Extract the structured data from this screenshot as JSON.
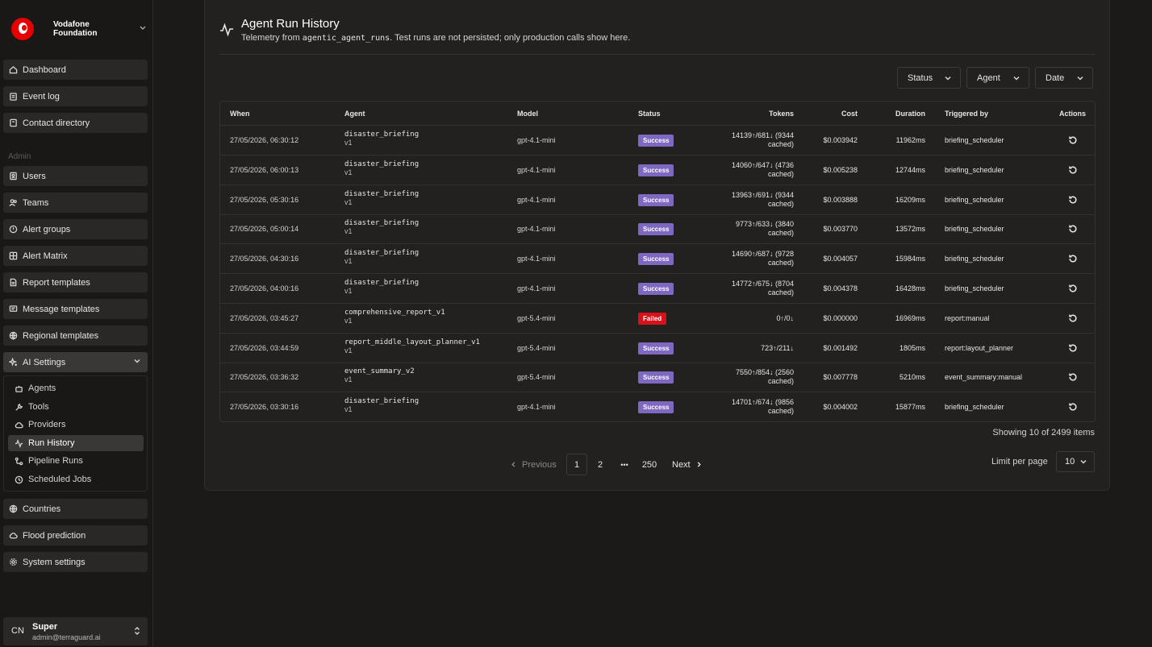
{
  "brand": {
    "line1": "Vodafone",
    "line2": "Foundation"
  },
  "nav": {
    "top": [
      {
        "label": "Dashboard",
        "icon": "home-icon"
      },
      {
        "label": "Event log",
        "icon": "clipboard-icon"
      },
      {
        "label": "Contact directory",
        "icon": "book-icon"
      }
    ],
    "section_label": "Admin",
    "admin": [
      {
        "label": "Users",
        "icon": "user-badge-icon"
      },
      {
        "label": "Teams",
        "icon": "users-icon"
      },
      {
        "label": "Alert groups",
        "icon": "alert-circle-icon"
      },
      {
        "label": "Alert Matrix",
        "icon": "grid-icon"
      },
      {
        "label": "Report templates",
        "icon": "file-icon"
      },
      {
        "label": "Message templates",
        "icon": "message-icon"
      },
      {
        "label": "Regional templates",
        "icon": "globe-icon"
      },
      {
        "label": "AI Settings",
        "icon": "sparkles-icon"
      }
    ],
    "ai_sub": [
      {
        "label": "Agents",
        "icon": "bot-icon"
      },
      {
        "label": "Tools",
        "icon": "wrench-icon"
      },
      {
        "label": "Providers",
        "icon": "cloud-icon"
      },
      {
        "label": "Run History",
        "icon": "activity-icon"
      },
      {
        "label": "Pipeline Runs",
        "icon": "workflow-icon"
      },
      {
        "label": "Scheduled Jobs",
        "icon": "clock-icon"
      }
    ],
    "bottom": [
      {
        "label": "Countries",
        "icon": "globe-icon"
      },
      {
        "label": "Flood prediction",
        "icon": "cloud-icon"
      },
      {
        "label": "System settings",
        "icon": "gear-icon"
      }
    ]
  },
  "user": {
    "initials": "CN",
    "name": "Super",
    "email": "admin@terraguard.ai"
  },
  "page": {
    "title": "Agent Run History",
    "subtitle_pre": "Telemetry from ",
    "subtitle_code": "agentic_agent_runs",
    "subtitle_post": ". Test runs are not persisted; only production calls show here."
  },
  "filters": {
    "status": "Status",
    "agent": "Agent",
    "date": "Date"
  },
  "table": {
    "headers": {
      "when": "When",
      "agent": "Agent",
      "model": "Model",
      "status": "Status",
      "tokens": "Tokens",
      "cost": "Cost",
      "duration": "Duration",
      "triggered_by": "Triggered by",
      "actions": "Actions"
    },
    "rows": [
      {
        "when": "27/05/2026, 06:30:12",
        "agent": "disaster_briefing",
        "version": "v1",
        "model": "gpt-4.1-mini",
        "status": "Success",
        "tokens_line1": "14139↑/681↓ (9344",
        "tokens_line2": "cached)",
        "cost": "$0.003942",
        "duration": "11962ms",
        "triggered_by": "briefing_scheduler"
      },
      {
        "when": "27/05/2026, 06:00:13",
        "agent": "disaster_briefing",
        "version": "v1",
        "model": "gpt-4.1-mini",
        "status": "Success",
        "tokens_line1": "14060↑/647↓ (4736",
        "tokens_line2": "cached)",
        "cost": "$0.005238",
        "duration": "12744ms",
        "triggered_by": "briefing_scheduler"
      },
      {
        "when": "27/05/2026, 05:30:16",
        "agent": "disaster_briefing",
        "version": "v1",
        "model": "gpt-4.1-mini",
        "status": "Success",
        "tokens_line1": "13963↑/691↓ (9344",
        "tokens_line2": "cached)",
        "cost": "$0.003888",
        "duration": "16209ms",
        "triggered_by": "briefing_scheduler"
      },
      {
        "when": "27/05/2026, 05:00:14",
        "agent": "disaster_briefing",
        "version": "v1",
        "model": "gpt-4.1-mini",
        "status": "Success",
        "tokens_line1": "9773↑/633↓ (3840",
        "tokens_line2": "cached)",
        "cost": "$0.003770",
        "duration": "13572ms",
        "triggered_by": "briefing_scheduler"
      },
      {
        "when": "27/05/2026, 04:30:16",
        "agent": "disaster_briefing",
        "version": "v1",
        "model": "gpt-4.1-mini",
        "status": "Success",
        "tokens_line1": "14690↑/687↓ (9728",
        "tokens_line2": "cached)",
        "cost": "$0.004057",
        "duration": "15984ms",
        "triggered_by": "briefing_scheduler"
      },
      {
        "when": "27/05/2026, 04:00:16",
        "agent": "disaster_briefing",
        "version": "v1",
        "model": "gpt-4.1-mini",
        "status": "Success",
        "tokens_line1": "14772↑/675↓ (8704",
        "tokens_line2": "cached)",
        "cost": "$0.004378",
        "duration": "16428ms",
        "triggered_by": "briefing_scheduler"
      },
      {
        "when": "27/05/2026, 03:45:27",
        "agent": "comprehensive_report_v1",
        "version": "v1",
        "model": "gpt-5.4-mini",
        "status": "Failed",
        "tokens_line1": "0↑/0↓",
        "tokens_line2": "",
        "cost": "$0.000000",
        "duration": "16969ms",
        "triggered_by": "report:manual"
      },
      {
        "when": "27/05/2026, 03:44:59",
        "agent": "report_middle_layout_planner_v1",
        "version": "v1",
        "model": "gpt-5.4-mini",
        "status": "Success",
        "tokens_line1": "723↑/211↓",
        "tokens_line2": "",
        "cost": "$0.001492",
        "duration": "1805ms",
        "triggered_by": "report:layout_planner"
      },
      {
        "when": "27/05/2026, 03:36:32",
        "agent": "event_summary_v2",
        "version": "v1",
        "model": "gpt-5.4-mini",
        "status": "Success",
        "tokens_line1": "7550↑/854↓ (2560",
        "tokens_line2": "cached)",
        "cost": "$0.007778",
        "duration": "5210ms",
        "triggered_by": "event_summary:manual"
      },
      {
        "when": "27/05/2026, 03:30:16",
        "agent": "disaster_briefing",
        "version": "v1",
        "model": "gpt-4.1-mini",
        "status": "Success",
        "tokens_line1": "14701↑/674↓ (9856",
        "tokens_line2": "cached)",
        "cost": "$0.004002",
        "duration": "15877ms",
        "triggered_by": "briefing_scheduler"
      }
    ]
  },
  "showing": "Showing 10 of 2499 items",
  "pagination": {
    "previous": "Previous",
    "pages": [
      "1",
      "2",
      "250"
    ],
    "ellipsis": "•••",
    "next": "Next"
  },
  "limit": {
    "label": "Limit per page",
    "value": "10"
  },
  "colors": {
    "success": "#7e68c2",
    "failed": "#d7121b",
    "brand": "#e60000"
  }
}
